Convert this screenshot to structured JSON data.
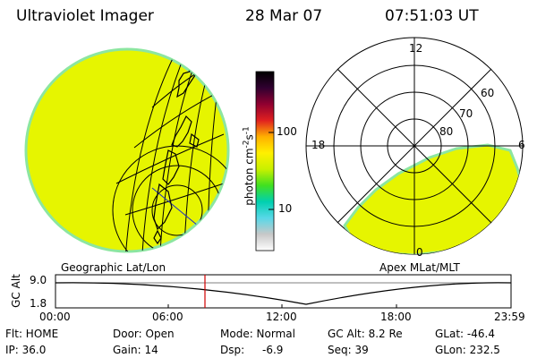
{
  "header": {
    "instrument": "Ultraviolet Imager",
    "date": "28 Mar 07",
    "time": "07:51:03 UT"
  },
  "colors": {
    "fill": "#e6f500",
    "edge": "#8ce6a0",
    "time_marker": "#d00000",
    "coast": "#000000",
    "grid": "#000000",
    "blue_line": "#2030c0"
  },
  "colorbar": {
    "unit_label": "photon cm",
    "unit_sup_a": "-2",
    "unit_mid": "s",
    "unit_sup_b": "-1",
    "ticks": [
      "100",
      "10"
    ],
    "stops": [
      "#ffffff",
      "#c8c8c8",
      "#58d8e8",
      "#00d0b0",
      "#40e020",
      "#c8f000",
      "#fff000",
      "#ffb000",
      "#e02020",
      "#900030",
      "#300030",
      "#000000"
    ]
  },
  "polar_plot": {
    "mlt_labels": [
      "12",
      "6",
      "0",
      "18"
    ],
    "mlat_labels": [
      "60",
      "70",
      "80"
    ]
  },
  "left_plot_label": "Geographic Lat/Lon",
  "right_plot_label": "Apex MLat/MLT",
  "altitude_strip": {
    "axis_label": "GC Alt",
    "y_ticks": [
      "9.0",
      "1.8"
    ],
    "x_ticks": [
      "00:00",
      "06:00",
      "12:00",
      "18:00",
      "23:59"
    ]
  },
  "footer": {
    "row1": [
      "Flt: HOME",
      "Door: Open",
      "Mode: Normal",
      "GC Alt: 8.2 Re",
      "GLat: -46.4"
    ],
    "row2": [
      "IP: 36.0",
      "Gain: 14",
      "Dsp:",
      "-6.9",
      "Seq: 39",
      "GLon: 232.5"
    ]
  }
}
